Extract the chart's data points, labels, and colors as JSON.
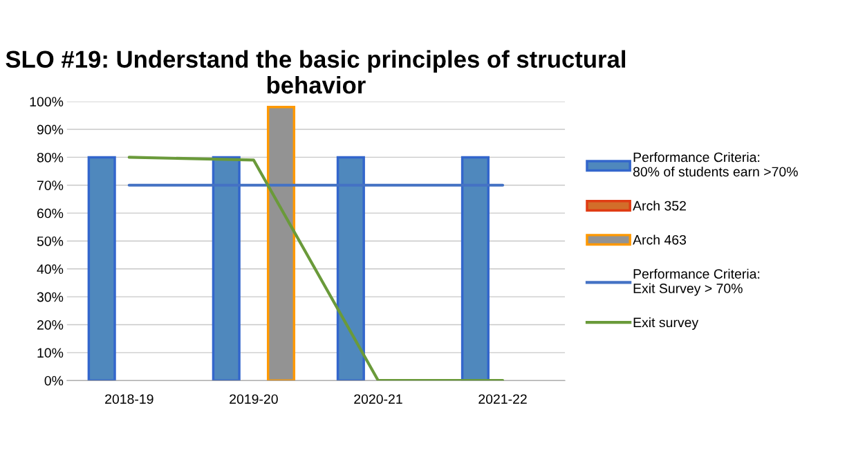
{
  "chart_data": {
    "type": "bar",
    "title": "SLO #19: Understand the basic principles of structural behavior",
    "categories": [
      "2018-19",
      "2019-20",
      "2020-21",
      "2021-22"
    ],
    "series": [
      {
        "name": "Performance Criteria:\n80% of students earn >70%",
        "color": "#4f88bd",
        "values": [
          80,
          80,
          80,
          80
        ]
      },
      {
        "name": "Arch 352",
        "color": "#d26e2a",
        "values": [
          null,
          null,
          null,
          null
        ]
      },
      {
        "name": "Arch 463",
        "color": "#939393",
        "values": [
          null,
          98,
          null,
          null
        ]
      },
      {
        "name": "Performance Criteria:\nExit Survey > 70%",
        "type": "line",
        "color": "#4472c4",
        "values": [
          70,
          70,
          70,
          70
        ]
      },
      {
        "name": "Exit survey",
        "type": "line",
        "color": "#6a9a3a",
        "values": [
          80,
          79,
          0,
          0
        ]
      }
    ],
    "ylim": [
      0,
      100
    ],
    "yticks": [
      {
        "value": 0,
        "label": "0%"
      },
      {
        "value": 10,
        "label": "10%"
      },
      {
        "value": 20,
        "label": "20%"
      },
      {
        "value": 30,
        "label": "30%"
      },
      {
        "value": 40,
        "label": "40%"
      },
      {
        "value": 50,
        "label": "50%"
      },
      {
        "value": 60,
        "label": "60%"
      },
      {
        "value": 70,
        "label": "70%"
      },
      {
        "value": 80,
        "label": "80%"
      },
      {
        "value": 90,
        "label": "90%"
      },
      {
        "value": 100,
        "label": "100%"
      }
    ],
    "grid": "y",
    "legend": "right"
  }
}
